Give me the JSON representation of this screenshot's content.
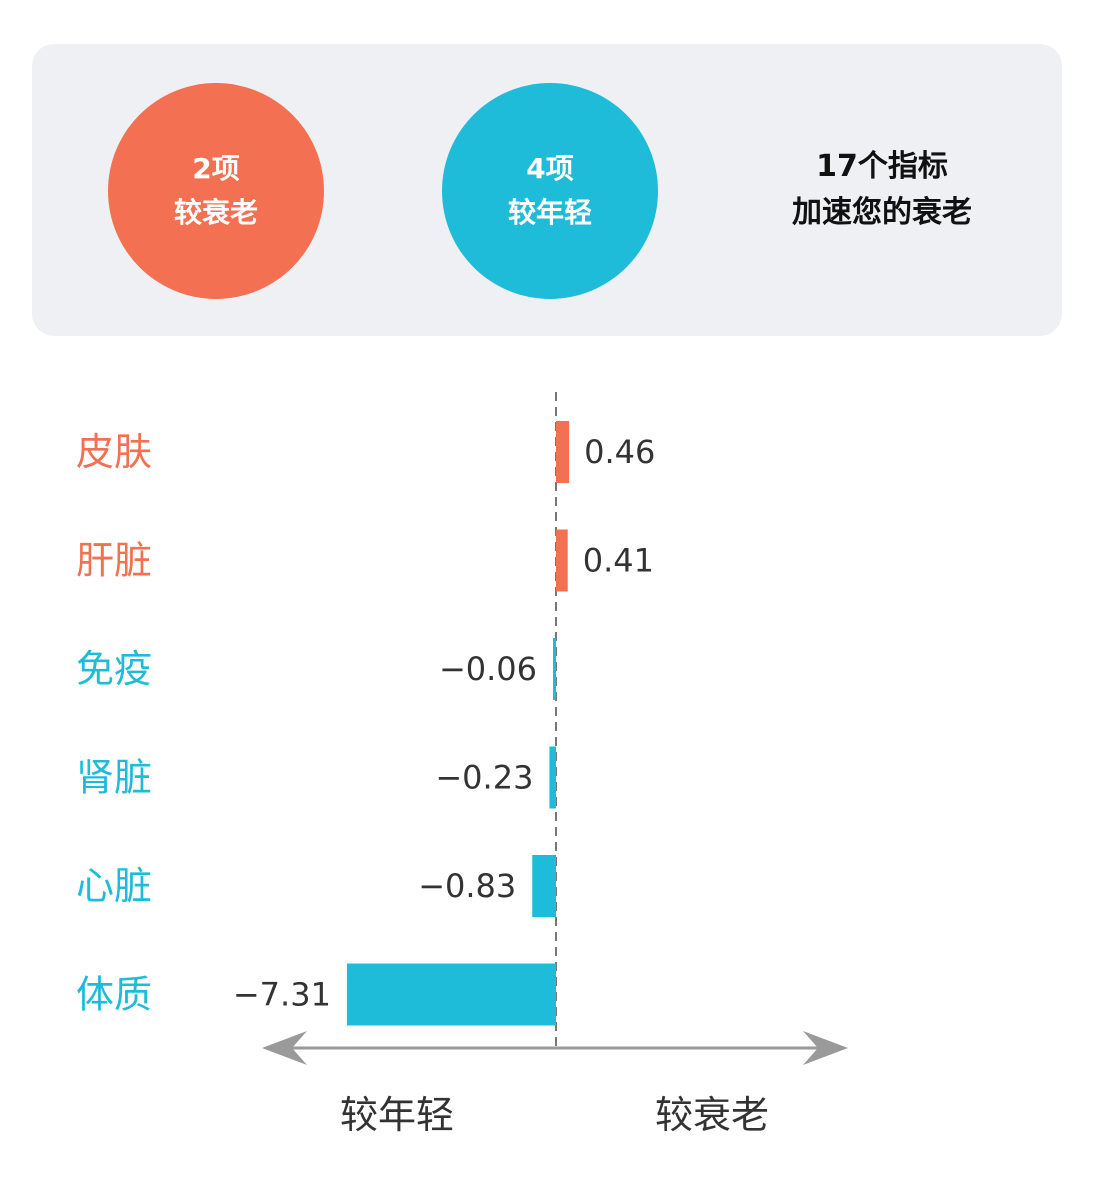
{
  "summary": {
    "older": {
      "count_label": "2项",
      "text": "较衰老",
      "color": "#f37152"
    },
    "younger": {
      "count_label": "4项",
      "text": "较年轻",
      "color": "#1fbcd9"
    },
    "headline_line1": "17个指标",
    "headline_line2": "加速您的衰老"
  },
  "chart_data": {
    "type": "bar",
    "orientation": "horizontal",
    "categories": [
      "皮肤",
      "肝脏",
      "免疫",
      "肾脏",
      "心脏",
      "体质"
    ],
    "values": [
      0.46,
      0.41,
      -0.06,
      -0.23,
      -0.83,
      -7.31
    ],
    "value_labels": [
      "0.46",
      "0.41",
      "−0.06",
      "−0.23",
      "−0.83",
      "−7.31"
    ],
    "positive_color": "#f37152",
    "negative_color": "#1fbcd9",
    "xlim": [
      -7.31,
      10
    ],
    "zero_line": "dashed",
    "axis_left_label": "较年轻",
    "axis_right_label": "较衰老",
    "grid": false
  }
}
